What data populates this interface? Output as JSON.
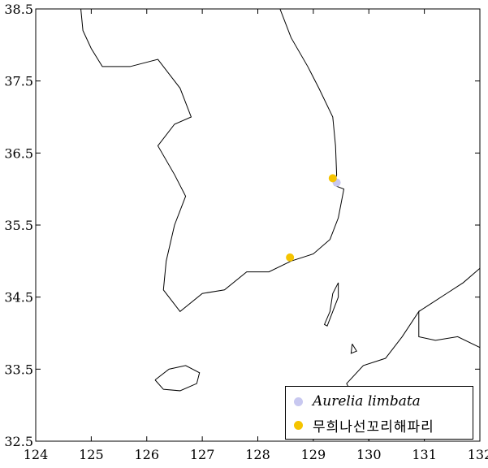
{
  "chart_data": {
    "type": "scatter",
    "xlim": [
      124,
      132
    ],
    "ylim": [
      32.5,
      38.5
    ],
    "x_ticks": [
      "124",
      "125",
      "126",
      "127",
      "128",
      "129",
      "130",
      "131",
      "132"
    ],
    "y_ticks": [
      "32.5",
      "33.5",
      "34.5",
      "35.5",
      "36.5",
      "37.5",
      "38.5"
    ],
    "grid": false,
    "legend_placement": "bottom-right",
    "series": [
      {
        "name": "Aurelia limbata",
        "color": "#c8c8f0",
        "points": [
          {
            "lon": 129.42,
            "lat": 36.09
          }
        ]
      },
      {
        "name": "무희나선꼬리해파리",
        "color": "#f5c400",
        "points": [
          {
            "lon": 129.35,
            "lat": 36.15
          },
          {
            "lon": 128.58,
            "lat": 35.05
          }
        ]
      }
    ]
  }
}
